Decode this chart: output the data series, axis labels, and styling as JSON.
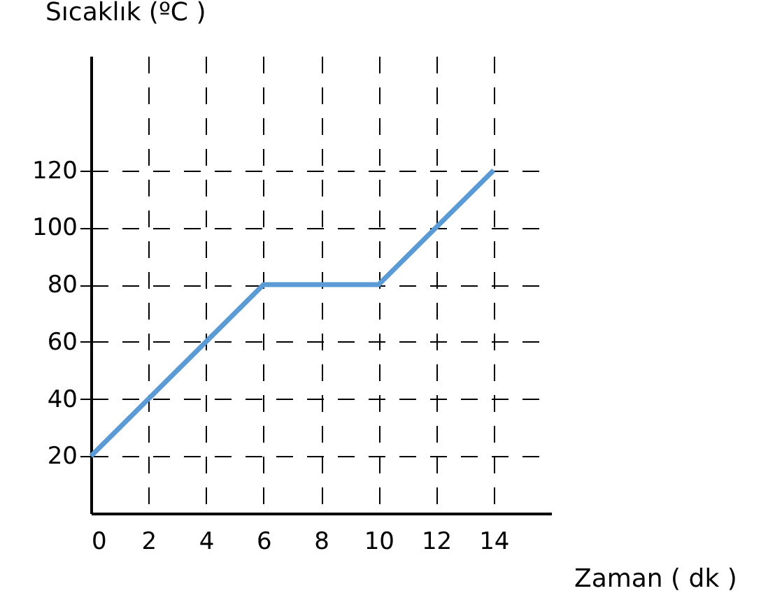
{
  "chart_data": {
    "type": "line",
    "xlabel": "Zaman ( dk )",
    "ylabel": "Sıcaklık (ºC )",
    "x": [
      0,
      2,
      4,
      6,
      10,
      12,
      14
    ],
    "series": [
      {
        "color": "#5b9bd5",
        "values": [
          20,
          40,
          60,
          80,
          80,
          100,
          120
        ]
      }
    ],
    "xlim": [
      0,
      16
    ],
    "ylim": [
      0,
      160
    ],
    "xticks": [
      0,
      2,
      4,
      6,
      8,
      10,
      12,
      14
    ],
    "yticks": [
      20,
      40,
      60,
      80,
      100,
      120
    ],
    "grid": true,
    "line_style": "solid",
    "marker": "none"
  }
}
